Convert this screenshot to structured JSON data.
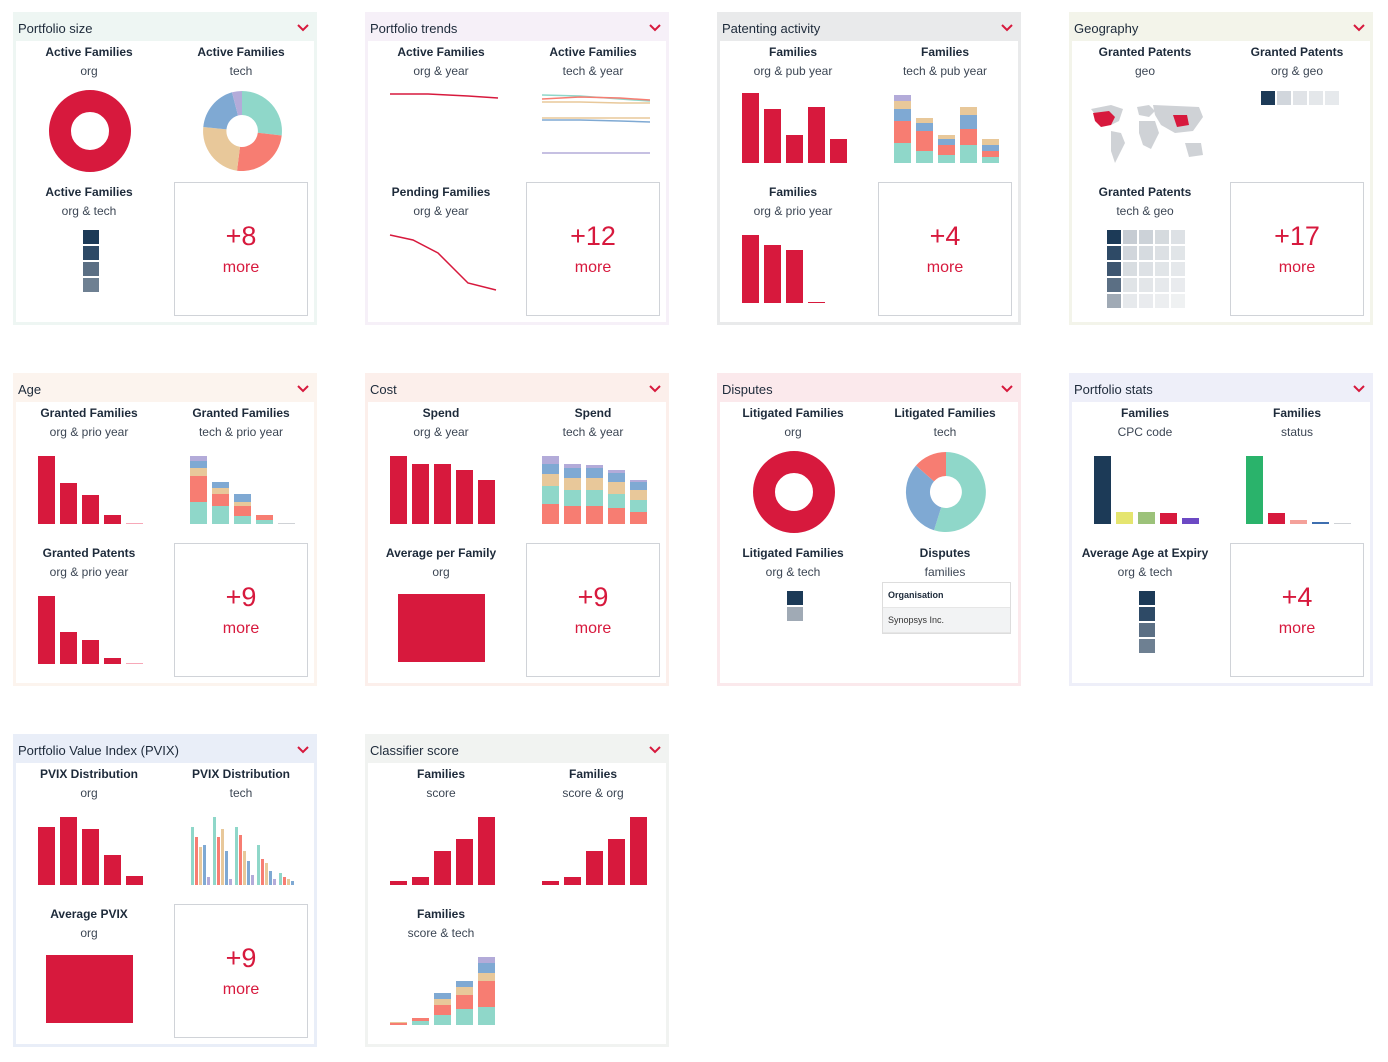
{
  "colors": {
    "accent": "#d7193d",
    "navy": "#1c3a57",
    "teal": "#8fd7c9",
    "salmon": "#f77d72",
    "tan": "#e8c89a",
    "blue": "#7fa9d3",
    "lavender": "#b3abd9",
    "green": "#2ab36b"
  },
  "cards": {
    "portfolio_size": {
      "title": "Portfolio size",
      "a": {
        "t": "Active Families",
        "s": "org"
      },
      "b": {
        "t": "Active Families",
        "s": "tech"
      },
      "c": {
        "t": "Active Families",
        "s": "org & tech"
      },
      "more": {
        "n": "+8",
        "m": "more"
      }
    },
    "portfolio_trends": {
      "title": "Portfolio trends",
      "a": {
        "t": "Active Families",
        "s": "org & year"
      },
      "b": {
        "t": "Active Families",
        "s": "tech & year"
      },
      "c": {
        "t": "Pending Families",
        "s": "org & year"
      },
      "more": {
        "n": "+12",
        "m": "more"
      }
    },
    "patenting_activity": {
      "title": "Patenting activity",
      "a": {
        "t": "Families",
        "s": "org & pub year"
      },
      "b": {
        "t": "Families",
        "s": "tech & pub year"
      },
      "c": {
        "t": "Families",
        "s": "org & prio year"
      },
      "more": {
        "n": "+4",
        "m": "more"
      }
    },
    "geography": {
      "title": "Geography",
      "a": {
        "t": "Granted Patents",
        "s": "geo"
      },
      "b": {
        "t": "Granted Patents",
        "s": "org & geo"
      },
      "c": {
        "t": "Granted Patents",
        "s": "tech & geo"
      },
      "more": {
        "n": "+17",
        "m": "more"
      }
    },
    "age": {
      "title": "Age",
      "a": {
        "t": "Granted Families",
        "s": "org & prio year"
      },
      "b": {
        "t": "Granted Families",
        "s": "tech & prio year"
      },
      "c": {
        "t": "Granted Patents",
        "s": "org & prio year"
      },
      "more": {
        "n": "+9",
        "m": "more"
      }
    },
    "cost": {
      "title": "Cost",
      "a": {
        "t": "Spend",
        "s": "org & year"
      },
      "b": {
        "t": "Spend",
        "s": "tech & year"
      },
      "c": {
        "t": "Average per Family",
        "s": "org"
      },
      "more": {
        "n": "+9",
        "m": "more"
      }
    },
    "disputes": {
      "title": "Disputes",
      "a": {
        "t": "Litigated Families",
        "s": "org"
      },
      "b": {
        "t": "Litigated Families",
        "s": "tech"
      },
      "c": {
        "t": "Litigated Families",
        "s": "org & tech"
      },
      "d": {
        "t": "Disputes",
        "s": "families"
      },
      "table": {
        "header": "Organisation",
        "row": "Synopsys Inc."
      }
    },
    "portfolio_stats": {
      "title": "Portfolio stats",
      "a": {
        "t": "Families",
        "s": "CPC code"
      },
      "b": {
        "t": "Families",
        "s": "status"
      },
      "c": {
        "t": "Average Age at Expiry",
        "s": "org & tech"
      },
      "more": {
        "n": "+4",
        "m": "more"
      }
    },
    "pvix": {
      "title": "Portfolio Value Index (PVIX)",
      "a": {
        "t": "PVIX Distribution",
        "s": "org"
      },
      "b": {
        "t": "PVIX Distribution",
        "s": "tech"
      },
      "c": {
        "t": "Average PVIX",
        "s": "org"
      },
      "more": {
        "n": "+9",
        "m": "more"
      }
    },
    "classifier": {
      "title": "Classifier score",
      "a": {
        "t": "Families",
        "s": "score"
      },
      "b": {
        "t": "Families",
        "s": "score & org"
      },
      "c": {
        "t": "Families",
        "s": "score & tech"
      }
    }
  }
}
